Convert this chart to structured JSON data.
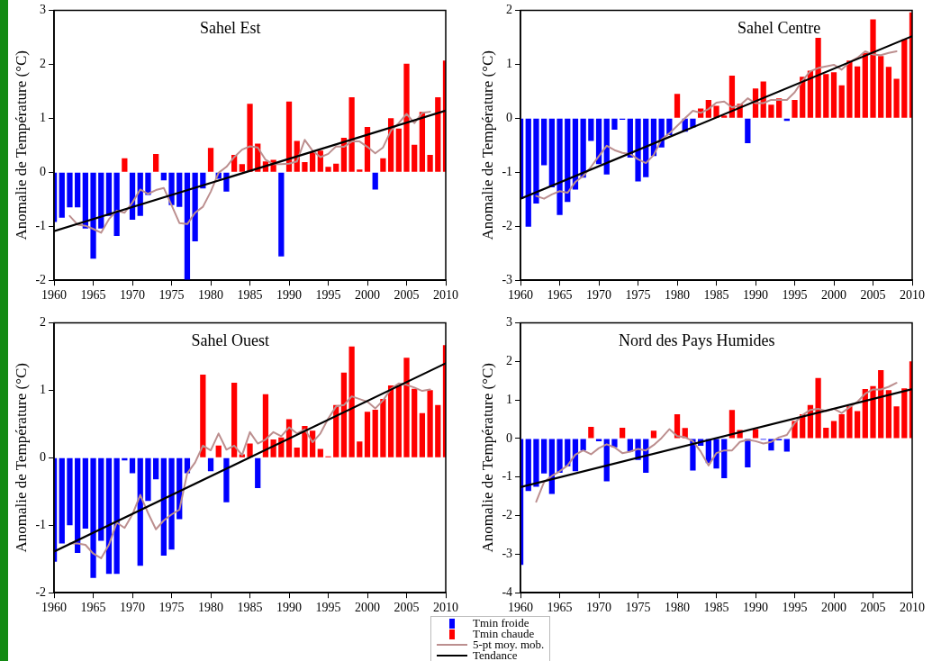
{
  "chart_data": [
    {
      "type": "bar",
      "title": "Sahel Est",
      "ylabel": "Anomalie de Température (°C)",
      "legend": "bottom",
      "x": [
        1960,
        1961,
        1962,
        1963,
        1964,
        1965,
        1966,
        1967,
        1968,
        1969,
        1970,
        1971,
        1972,
        1973,
        1974,
        1975,
        1976,
        1977,
        1978,
        1979,
        1980,
        1981,
        1982,
        1983,
        1984,
        1985,
        1986,
        1987,
        1988,
        1989,
        1990,
        1991,
        1992,
        1993,
        1994,
        1995,
        1996,
        1997,
        1998,
        1999,
        2000,
        2001,
        2002,
        2003,
        2004,
        2005,
        2006,
        2007,
        2008,
        2009,
        2010
      ],
      "xlim": [
        1960,
        2010
      ],
      "xticks": [
        1960,
        1965,
        1970,
        1975,
        1980,
        1985,
        1990,
        1995,
        2000,
        2005,
        2010
      ],
      "ylim": [
        -2,
        3
      ],
      "yticks": [
        -2,
        -1,
        0,
        1,
        2,
        3
      ],
      "series": [
        {
          "name": "Tmin froide",
          "color": "#0000ff",
          "values": [
            -0.92,
            -0.84,
            -0.65,
            -0.65,
            -1.04,
            -1.6,
            -1.04,
            -0.81,
            -1.18,
            null,
            -0.88,
            -0.81,
            -0.42,
            null,
            -0.15,
            -0.61,
            -0.64,
            -2.0,
            -1.28,
            -0.3,
            null,
            -0.12,
            -0.36,
            null,
            null,
            null,
            null,
            null,
            null,
            -1.56,
            null,
            null,
            null,
            null,
            null,
            null,
            null,
            null,
            null,
            null,
            null,
            -0.32,
            null,
            null,
            null,
            null,
            null,
            null,
            null,
            null,
            null
          ]
        },
        {
          "name": "Tmin chaude",
          "color": "#ff0000",
          "values": [
            null,
            null,
            null,
            null,
            null,
            null,
            null,
            null,
            null,
            0.26,
            null,
            null,
            null,
            0.34,
            null,
            null,
            null,
            null,
            null,
            null,
            0.45,
            null,
            null,
            0.32,
            0.15,
            1.27,
            0.53,
            0.2,
            0.23,
            null,
            1.31,
            0.58,
            0.19,
            0.37,
            0.4,
            0.1,
            0.16,
            0.64,
            1.39,
            0.05,
            0.84,
            null,
            0.26,
            1.0,
            0.81,
            2.01,
            0.51,
            1.12,
            0.32,
            1.39,
            2.07
          ]
        },
        {
          "name": "5-pt moy. mob.",
          "type": "line",
          "color": "#bc8f8f",
          "x": [
            1962,
            1963,
            1964,
            1965,
            1966,
            1967,
            1968,
            1969,
            1970,
            1971,
            1972,
            1973,
            1974,
            1975,
            1976,
            1977,
            1978,
            1979,
            1980,
            1981,
            1982,
            1983,
            1984,
            1985,
            1986,
            1987,
            1988,
            1989,
            1990,
            1991,
            1992,
            1993,
            1994,
            1995,
            1996,
            1997,
            1998,
            1999,
            2000,
            2001,
            2002,
            2003,
            2004,
            2005,
            2006,
            2007,
            2008
          ],
          "values": [
            -0.81,
            -0.97,
            -0.99,
            -1.05,
            -1.12,
            -0.87,
            -0.71,
            -0.75,
            -0.56,
            -0.32,
            -0.4,
            -0.33,
            -0.29,
            -0.61,
            -0.94,
            -0.96,
            -0.75,
            -0.64,
            -0.36,
            -0.01,
            0.1,
            0.28,
            0.42,
            0.48,
            0.46,
            0.23,
            0.15,
            0.15,
            0.16,
            0.2,
            0.6,
            0.4,
            0.28,
            0.34,
            0.48,
            0.47,
            0.57,
            0.57,
            0.47,
            0.35,
            0.46,
            0.77,
            0.91,
            1.08,
            0.91,
            1.1,
            1.12
          ]
        },
        {
          "name": "Tendance",
          "type": "line",
          "color": "#000000",
          "x": [
            1960,
            2010
          ],
          "values": [
            -1.09,
            1.14
          ]
        }
      ]
    },
    {
      "type": "bar",
      "title": "Sahel Centre",
      "ylabel": "Anomalie de Température (°C)",
      "x": [
        1960,
        1961,
        1962,
        1963,
        1964,
        1965,
        1966,
        1967,
        1968,
        1969,
        1970,
        1971,
        1972,
        1973,
        1974,
        1975,
        1976,
        1977,
        1978,
        1979,
        1980,
        1981,
        1982,
        1983,
        1984,
        1985,
        1986,
        1987,
        1988,
        1989,
        1990,
        1991,
        1992,
        1993,
        1994,
        1995,
        1996,
        1997,
        1998,
        1999,
        2000,
        2001,
        2002,
        2003,
        2004,
        2005,
        2006,
        2007,
        2008,
        2009,
        2010
      ],
      "xlim": [
        1960,
        2010
      ],
      "xticks": [
        1960,
        1965,
        1970,
        1975,
        1980,
        1985,
        1990,
        1995,
        2000,
        2005,
        2010
      ],
      "ylim": [
        -3,
        2
      ],
      "yticks": [
        -3,
        -2,
        -1,
        0,
        1,
        2
      ],
      "series": [
        {
          "color": "#0000ff",
          "values": [
            -1.49,
            -2.01,
            -1.58,
            -0.87,
            -1.28,
            -1.79,
            -1.55,
            -1.32,
            -1.1,
            -0.42,
            -0.85,
            -1.04,
            -0.21,
            -0.03,
            -0.73,
            -1.17,
            -1.09,
            -0.7,
            -0.54,
            -0.31,
            null,
            -0.25,
            -0.17,
            null,
            null,
            null,
            null,
            null,
            null,
            -0.46,
            null,
            null,
            null,
            null,
            -0.05,
            null,
            null,
            null,
            null,
            null,
            null,
            null,
            null,
            null,
            null,
            null,
            null,
            null,
            null,
            null,
            null
          ]
        },
        {
          "color": "#ff0000",
          "values": [
            null,
            null,
            null,
            null,
            null,
            null,
            null,
            null,
            null,
            null,
            null,
            null,
            null,
            null,
            null,
            null,
            null,
            null,
            null,
            null,
            0.45,
            null,
            null,
            0.18,
            0.34,
            0.23,
            0.05,
            0.79,
            0.27,
            null,
            0.55,
            0.68,
            0.25,
            0.37,
            null,
            0.34,
            0.77,
            0.88,
            1.49,
            0.82,
            0.85,
            0.61,
            1.07,
            0.96,
            1.21,
            1.83,
            1.15,
            0.95,
            0.73,
            1.46,
            1.96
          ]
        },
        {
          "type": "line",
          "color": "#bc8f8f",
          "x": [
            1962,
            1963,
            1964,
            1965,
            1966,
            1967,
            1968,
            1969,
            1970,
            1971,
            1972,
            1973,
            1974,
            1975,
            1976,
            1977,
            1978,
            1979,
            1980,
            1981,
            1982,
            1983,
            1984,
            1985,
            1986,
            1987,
            1988,
            1989,
            1990,
            1991,
            1992,
            1993,
            1994,
            1995,
            1996,
            1997,
            1998,
            1999,
            2000,
            2001,
            2002,
            2003,
            2004,
            2005,
            2006,
            2007,
            2008
          ],
          "values": [
            -1.44,
            -1.49,
            -1.41,
            -1.35,
            -1.38,
            -1.18,
            -1.07,
            -0.9,
            -0.7,
            -0.51,
            -0.59,
            -0.64,
            -0.66,
            -0.76,
            -0.83,
            -0.68,
            -0.39,
            -0.28,
            -0.14,
            0.0,
            0.14,
            0.1,
            0.17,
            0.29,
            0.31,
            0.2,
            0.24,
            0.37,
            0.28,
            0.28,
            0.34,
            0.34,
            0.34,
            0.48,
            0.7,
            0.87,
            0.93,
            0.96,
            0.99,
            0.9,
            1.04,
            1.12,
            1.24,
            1.18,
            1.17,
            1.21,
            1.24
          ]
        },
        {
          "type": "line",
          "color": "#000000",
          "x": [
            1960,
            2010
          ],
          "values": [
            -1.49,
            1.52
          ]
        }
      ]
    },
    {
      "type": "bar",
      "title": "Sahel Ouest",
      "ylabel": "Anomalie de Température (°C)",
      "x": [
        1960,
        1961,
        1962,
        1963,
        1964,
        1965,
        1966,
        1967,
        1968,
        1969,
        1970,
        1971,
        1972,
        1973,
        1974,
        1975,
        1976,
        1977,
        1978,
        1979,
        1980,
        1981,
        1982,
        1983,
        1984,
        1985,
        1986,
        1987,
        1988,
        1989,
        1990,
        1991,
        1992,
        1993,
        1994,
        1995,
        1996,
        1997,
        1998,
        1999,
        2000,
        2001,
        2002,
        2003,
        2004,
        2005,
        2006,
        2007,
        2008,
        2009,
        2010
      ],
      "xlim": [
        1960,
        2010
      ],
      "xticks": [
        1960,
        1965,
        1970,
        1975,
        1980,
        1985,
        1990,
        1995,
        2000,
        2005,
        2010
      ],
      "ylim": [
        -2,
        2
      ],
      "yticks": [
        -2,
        -1,
        0,
        1,
        2
      ],
      "series": [
        {
          "color": "#0000ff",
          "values": [
            -1.54,
            -1.27,
            -1.0,
            -1.41,
            -1.05,
            -1.78,
            -1.23,
            -1.72,
            -1.72,
            -0.04,
            -0.23,
            -1.6,
            -0.64,
            -0.32,
            -1.45,
            -1.36,
            -0.91,
            -0.23,
            null,
            null,
            -0.2,
            null,
            -0.66,
            null,
            null,
            null,
            -0.45,
            null,
            null,
            null,
            null,
            null,
            null,
            null,
            null,
            null,
            null,
            null,
            null,
            null,
            null,
            null,
            null,
            null,
            null,
            null,
            null,
            null,
            null,
            null,
            null
          ]
        },
        {
          "color": "#ff0000",
          "values": [
            null,
            null,
            null,
            null,
            null,
            null,
            null,
            null,
            null,
            null,
            null,
            null,
            null,
            null,
            null,
            null,
            null,
            null,
            null,
            1.23,
            null,
            0.18,
            null,
            1.11,
            0.05,
            0.21,
            null,
            0.94,
            0.27,
            0.3,
            0.57,
            0.15,
            0.47,
            0.4,
            0.13,
            0.02,
            0.78,
            1.26,
            1.65,
            0.24,
            0.68,
            0.71,
            0.87,
            1.07,
            1.07,
            1.48,
            1.02,
            0.66,
            1.0,
            0.78,
            1.67
          ]
        },
        {
          "type": "line",
          "color": "#bc8f8f",
          "x": [
            1962,
            1963,
            1964,
            1965,
            1966,
            1967,
            1968,
            1969,
            1970,
            1971,
            1972,
            1973,
            1974,
            1975,
            1976,
            1977,
            1978,
            1979,
            1980,
            1981,
            1982,
            1983,
            1984,
            1985,
            1986,
            1987,
            1988,
            1989,
            1990,
            1991,
            1992,
            1993,
            1994,
            1995,
            1996,
            1997,
            1998,
            1999,
            2000,
            2001,
            2002,
            2003,
            2004,
            2005,
            2006,
            2007,
            2008
          ],
          "values": [
            -1.27,
            -1.27,
            -1.29,
            -1.42,
            -1.49,
            -1.29,
            -0.96,
            -1.04,
            -0.84,
            -0.55,
            -0.82,
            -1.06,
            -0.93,
            -0.84,
            -0.77,
            -0.23,
            -0.07,
            0.18,
            0.11,
            0.36,
            0.12,
            0.18,
            0.04,
            0.38,
            0.21,
            0.27,
            0.38,
            0.32,
            0.45,
            0.36,
            0.42,
            0.23,
            0.36,
            0.58,
            0.76,
            0.78,
            0.91,
            0.87,
            0.83,
            0.73,
            0.85,
            1.02,
            1.1,
            1.08,
            1.04,
            0.99,
            1.01
          ]
        },
        {
          "type": "line",
          "color": "#000000",
          "x": [
            1960,
            2010
          ],
          "values": [
            -1.39,
            1.4
          ]
        }
      ]
    },
    {
      "type": "bar",
      "title": "Nord des Pays Humides",
      "ylabel": "Anomalie de Température (°C)",
      "x": [
        1960,
        1961,
        1962,
        1963,
        1964,
        1965,
        1966,
        1967,
        1968,
        1969,
        1970,
        1971,
        1972,
        1973,
        1974,
        1975,
        1976,
        1977,
        1978,
        1979,
        1980,
        1981,
        1982,
        1983,
        1984,
        1985,
        1986,
        1987,
        1988,
        1989,
        1990,
        1991,
        1992,
        1993,
        1994,
        1995,
        1996,
        1997,
        1998,
        1999,
        2000,
        2001,
        2002,
        2003,
        2004,
        2005,
        2006,
        2007,
        2008,
        2009,
        2010
      ],
      "xlim": [
        1960,
        2010
      ],
      "xticks": [
        1960,
        1965,
        1970,
        1975,
        1980,
        1985,
        1990,
        1995,
        2000,
        2005,
        2010
      ],
      "ylim": [
        -4,
        3
      ],
      "yticks": [
        -4,
        -3,
        -2,
        -1,
        0,
        1,
        2,
        3
      ],
      "series": [
        {
          "color": "#0000ff",
          "values": [
            -3.28,
            -1.36,
            -1.25,
            -0.91,
            -1.44,
            -0.89,
            -0.72,
            -0.85,
            -0.31,
            null,
            -0.07,
            -1.11,
            -0.23,
            null,
            -0.34,
            -0.56,
            -0.89,
            null,
            null,
            null,
            null,
            null,
            -0.83,
            -0.19,
            -0.64,
            -0.78,
            -1.03,
            null,
            null,
            -0.75,
            null,
            -0.03,
            -0.31,
            -0.05,
            -0.34,
            null,
            null,
            null,
            null,
            null,
            null,
            null,
            null,
            null,
            null,
            null,
            null,
            null,
            null,
            null,
            null
          ]
        },
        {
          "color": "#ff0000",
          "values": [
            null,
            null,
            null,
            null,
            null,
            null,
            null,
            null,
            null,
            0.3,
            null,
            null,
            null,
            0.28,
            null,
            null,
            null,
            0.2,
            null,
            null,
            0.63,
            0.27,
            null,
            null,
            null,
            null,
            null,
            0.74,
            0.22,
            null,
            0.24,
            null,
            null,
            null,
            null,
            0.45,
            0.63,
            0.87,
            1.57,
            0.28,
            0.45,
            0.63,
            0.83,
            0.71,
            1.28,
            1.36,
            1.77,
            1.25,
            0.83,
            1.3,
            2.0
          ]
        },
        {
          "type": "line",
          "color": "#bc8f8f",
          "x": [
            1962,
            1963,
            1964,
            1965,
            1966,
            1967,
            1968,
            1969,
            1970,
            1971,
            1972,
            1973,
            1974,
            1975,
            1976,
            1977,
            1978,
            1979,
            1980,
            1981,
            1982,
            1983,
            1984,
            1985,
            1986,
            1987,
            1988,
            1989,
            1990,
            1991,
            1992,
            1993,
            1994,
            1995,
            1996,
            1997,
            1998,
            1999,
            2000,
            2001,
            2002,
            2003,
            2004,
            2005,
            2006,
            2007,
            2008
          ],
          "values": [
            -1.64,
            -1.13,
            -0.97,
            -0.85,
            -0.7,
            -0.42,
            -0.31,
            -0.41,
            -0.25,
            -0.15,
            -0.23,
            -0.38,
            -0.34,
            -0.27,
            -0.31,
            -0.17,
            0.01,
            0.24,
            0.06,
            0.03,
            -0.07,
            -0.34,
            -0.7,
            -0.38,
            -0.31,
            -0.31,
            -0.09,
            -0.03,
            -0.07,
            -0.13,
            -0.09,
            0.03,
            0.09,
            0.4,
            0.61,
            0.74,
            0.77,
            0.71,
            0.77,
            0.66,
            0.81,
            0.95,
            1.16,
            1.27,
            1.27,
            1.34,
            1.44
          ]
        },
        {
          "type": "line",
          "color": "#000000",
          "x": [
            1960,
            2010
          ],
          "values": [
            -1.26,
            1.28
          ]
        }
      ]
    }
  ]
}
